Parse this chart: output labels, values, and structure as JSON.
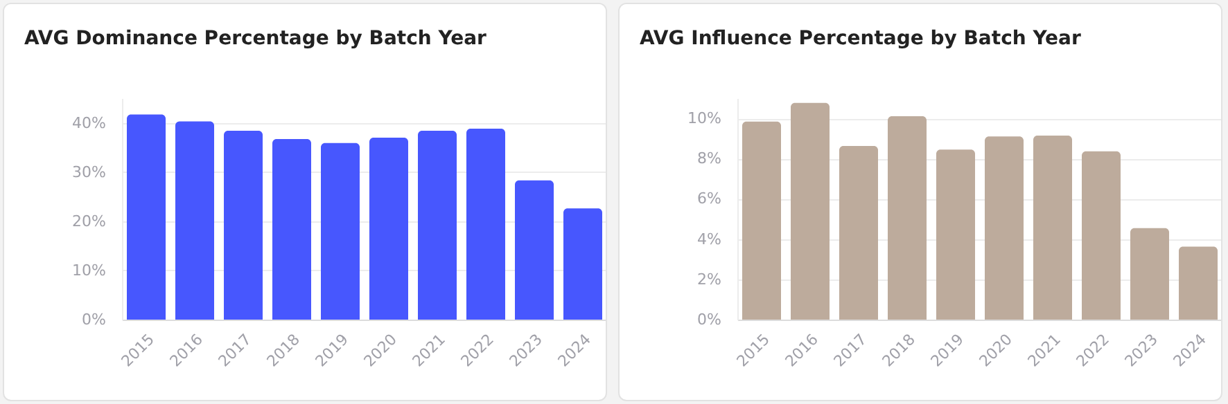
{
  "chart_data": [
    {
      "type": "bar",
      "title": "AVG Dominance Percentage by Batch Year",
      "categories": [
        "2015",
        "2016",
        "2017",
        "2018",
        "2019",
        "2020",
        "2021",
        "2022",
        "2023",
        "2024"
      ],
      "series": [
        {
          "color": "#4757fe",
          "values": [
            41.7,
            40.3,
            38.4,
            36.7,
            35.9,
            37.0,
            38.4,
            38.8,
            28.3,
            22.6
          ]
        }
      ],
      "ylim": [
        0,
        45
      ],
      "yticks": [
        {
          "value": 0,
          "label": "0%"
        },
        {
          "value": 10,
          "label": "10%"
        },
        {
          "value": 20,
          "label": "20%"
        },
        {
          "value": 30,
          "label": "30%"
        },
        {
          "value": 40,
          "label": "40%"
        }
      ],
      "grid": "y",
      "legend": false
    },
    {
      "type": "bar",
      "title": "AVG Influence Percentage by Batch Year",
      "categories": [
        "2015",
        "2016",
        "2017",
        "2018",
        "2019",
        "2020",
        "2021",
        "2022",
        "2023",
        "2024"
      ],
      "series": [
        {
          "color": "#bdab9c",
          "values": [
            9.84,
            10.77,
            8.63,
            10.11,
            8.45,
            9.1,
            9.14,
            8.36,
            4.55,
            3.63
          ]
        }
      ],
      "ylim": [
        0,
        11
      ],
      "yticks": [
        {
          "value": 0,
          "label": "0%"
        },
        {
          "value": 2,
          "label": "2%"
        },
        {
          "value": 4,
          "label": "4%"
        },
        {
          "value": 6,
          "label": "6%"
        },
        {
          "value": 8,
          "label": "8%"
        },
        {
          "value": 10,
          "label": "10%"
        }
      ],
      "grid": "y",
      "legend": false
    }
  ]
}
